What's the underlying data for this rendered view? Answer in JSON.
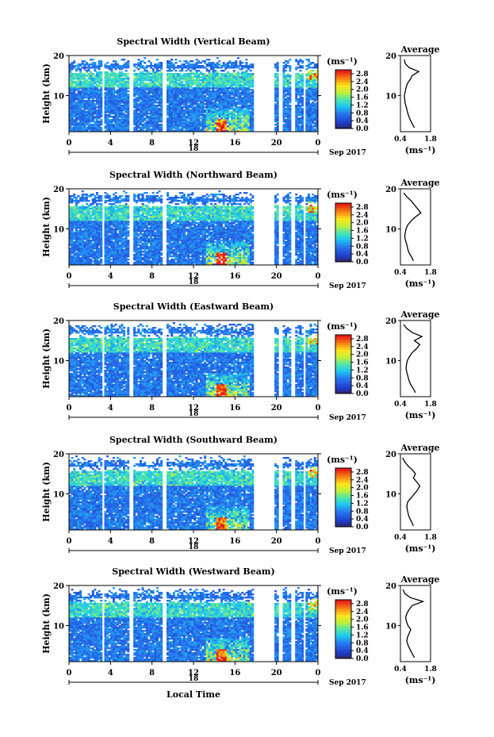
{
  "figure": {
    "date_label": "Sep 2017",
    "day_label": "18",
    "xlabel_bottom": "Local Time",
    "unit_label": "(ms⁻¹)",
    "avg_title": "Average",
    "avg_xlabel": "(ms⁻¹)"
  },
  "chart_data": [
    {
      "type": "heatmap",
      "title": "Spectral Width (Vertical Beam)",
      "ylabel": "Height (km)",
      "xlim": [
        0,
        24
      ],
      "xticks": [
        "0",
        "4",
        "8",
        "12",
        "16",
        "20",
        "0"
      ],
      "ylim": [
        1,
        20
      ],
      "yticks": [
        "10",
        "20"
      ],
      "colorbar": {
        "ticks": [
          "0.0",
          "0.4",
          "0.8",
          "1.2",
          "1.6",
          "2.0",
          "2.4",
          "2.8"
        ],
        "range": [
          0,
          3.0
        ]
      },
      "gaps_hours": [
        3.2,
        3.4,
        5.8,
        6.1,
        9.1,
        9.3,
        17.8,
        19.8,
        20.3,
        20.6,
        21.4,
        21.7,
        22.7,
        22.9
      ],
      "average_profile": {
        "xlim": [
          0.4,
          1.8
        ],
        "xticks": [
          "0.4",
          "1.8"
        ],
        "ylim": [
          1,
          20
        ],
        "yticks": [
          "10",
          "20"
        ],
        "height_km": [
          2,
          3,
          4,
          5,
          6,
          7,
          8,
          9,
          10,
          11,
          12,
          13,
          14,
          15,
          16,
          17,
          18,
          19
        ],
        "width": [
          1.05,
          0.95,
          0.85,
          0.78,
          0.72,
          0.68,
          0.62,
          0.6,
          0.58,
          0.62,
          0.66,
          0.72,
          0.85,
          0.95,
          1.25,
          0.8,
          0.62,
          0.58
        ]
      }
    },
    {
      "type": "heatmap",
      "title": "Spectral Width (Northward Beam)",
      "ylabel": "Height (km)",
      "xlim": [
        0,
        24
      ],
      "xticks": [
        "0",
        "4",
        "8",
        "12",
        "16",
        "20",
        "0"
      ],
      "ylim": [
        1,
        20
      ],
      "yticks": [
        "10",
        "20"
      ],
      "colorbar": {
        "ticks": [
          "0.0",
          "0.4",
          "0.8",
          "1.2",
          "1.6",
          "2.0",
          "2.4",
          "2.8"
        ],
        "range": [
          0,
          3.0
        ]
      },
      "gaps_hours": [
        3.2,
        3.4,
        5.8,
        6.1,
        9.1,
        9.3,
        17.8,
        19.8,
        20.3,
        20.6,
        21.4,
        21.7,
        22.7,
        22.9
      ],
      "average_profile": {
        "xlim": [
          0.4,
          1.8
        ],
        "xticks": [
          "0.4",
          "1.8"
        ],
        "ylim": [
          1,
          20
        ],
        "yticks": [
          "10",
          "20"
        ],
        "height_km": [
          2,
          3,
          4,
          5,
          6,
          7,
          8,
          9,
          10,
          11,
          12,
          13,
          14,
          15,
          16,
          17,
          18,
          19
        ],
        "width": [
          1.0,
          0.92,
          0.8,
          0.74,
          0.7,
          0.64,
          0.6,
          0.62,
          0.66,
          0.74,
          0.9,
          1.1,
          1.35,
          1.2,
          1.05,
          0.9,
          0.7,
          0.55
        ]
      }
    },
    {
      "type": "heatmap",
      "title": "Spectral Width (Eastward Beam)",
      "ylabel": "Height (km)",
      "xlim": [
        0,
        24
      ],
      "xticks": [
        "0",
        "4",
        "8",
        "12",
        "16",
        "20",
        "0"
      ],
      "ylim": [
        1,
        20
      ],
      "yticks": [
        "10",
        "20"
      ],
      "colorbar": {
        "ticks": [
          "0.0",
          "0.4",
          "0.8",
          "1.2",
          "1.6",
          "2.0",
          "2.4",
          "2.8"
        ],
        "range": [
          0,
          3.0
        ]
      },
      "gaps_hours": [
        3.2,
        3.4,
        5.8,
        6.1,
        9.1,
        9.3,
        17.8,
        19.8,
        20.3,
        20.6,
        21.4,
        21.7,
        22.7,
        22.9
      ],
      "average_profile": {
        "xlim": [
          0.4,
          1.8
        ],
        "xticks": [
          "0.4",
          "1.8"
        ],
        "ylim": [
          1,
          20
        ],
        "yticks": [
          "10",
          "20"
        ],
        "height_km": [
          2,
          3,
          4,
          5,
          6,
          7,
          8,
          9,
          10,
          11,
          12,
          13,
          14,
          15,
          16,
          17,
          18,
          19
        ],
        "width": [
          1.1,
          1.0,
          0.88,
          0.8,
          0.75,
          0.7,
          0.66,
          0.68,
          0.72,
          0.82,
          0.95,
          1.15,
          1.3,
          1.05,
          1.4,
          0.95,
          0.7,
          0.55
        ]
      }
    },
    {
      "type": "heatmap",
      "title": "Spectral Width (Southward Beam)",
      "ylabel": "Height (km)",
      "xlim": [
        0,
        24
      ],
      "xticks": [
        "0",
        "4",
        "8",
        "12",
        "16",
        "20",
        "0"
      ],
      "ylim": [
        1,
        20
      ],
      "yticks": [
        "10",
        "20"
      ],
      "colorbar": {
        "ticks": [
          "0.0",
          "0.4",
          "0.8",
          "1.2",
          "1.6",
          "2.0",
          "2.4",
          "2.8"
        ],
        "range": [
          0,
          3.0
        ]
      },
      "gaps_hours": [
        3.2,
        3.4,
        5.8,
        6.1,
        9.1,
        9.3,
        17.8,
        19.8,
        20.3,
        20.6,
        21.4,
        21.7,
        22.7,
        22.9
      ],
      "average_profile": {
        "xlim": [
          0.4,
          1.8
        ],
        "xticks": [
          "0.4",
          "1.8"
        ],
        "ylim": [
          1,
          20
        ],
        "yticks": [
          "10",
          "20"
        ],
        "height_km": [
          2,
          3,
          4,
          5,
          6,
          7,
          8,
          9,
          10,
          11,
          12,
          13,
          14,
          15,
          16,
          17,
          18,
          19
        ],
        "width": [
          1.0,
          0.92,
          0.82,
          0.76,
          0.72,
          0.7,
          0.74,
          0.9,
          1.05,
          1.2,
          1.3,
          1.15,
          1.0,
          1.1,
          0.95,
          0.75,
          0.6,
          0.5
        ]
      }
    },
    {
      "type": "heatmap",
      "title": "Spectral Width (Westward Beam)",
      "ylabel": "Height (km)",
      "xlim": [
        0,
        24
      ],
      "xticks": [
        "0",
        "4",
        "8",
        "12",
        "16",
        "20",
        "0"
      ],
      "ylim": [
        1,
        20
      ],
      "yticks": [
        "10",
        "20"
      ],
      "colorbar": {
        "ticks": [
          "0.0",
          "0.4",
          "0.8",
          "1.2",
          "1.6",
          "2.0",
          "2.4",
          "2.8"
        ],
        "range": [
          0,
          3.0
        ]
      },
      "gaps_hours": [
        3.2,
        3.4,
        5.8,
        6.1,
        9.1,
        9.3,
        17.8,
        19.8,
        20.3,
        20.6,
        21.4,
        21.7,
        22.7,
        22.9
      ],
      "average_profile": {
        "xlim": [
          0.4,
          1.8
        ],
        "xticks": [
          "0.4",
          "1.8"
        ],
        "ylim": [
          1,
          20
        ],
        "yticks": [
          "10",
          "20"
        ],
        "height_km": [
          2,
          3,
          4,
          5,
          6,
          7,
          8,
          9,
          10,
          11,
          12,
          13,
          14,
          15,
          16,
          17,
          18,
          19
        ],
        "width": [
          1.05,
          0.95,
          0.85,
          0.76,
          0.7,
          0.72,
          0.8,
          0.88,
          0.75,
          0.68,
          0.64,
          0.7,
          0.8,
          0.95,
          1.45,
          0.85,
          0.6,
          0.52
        ]
      }
    }
  ]
}
